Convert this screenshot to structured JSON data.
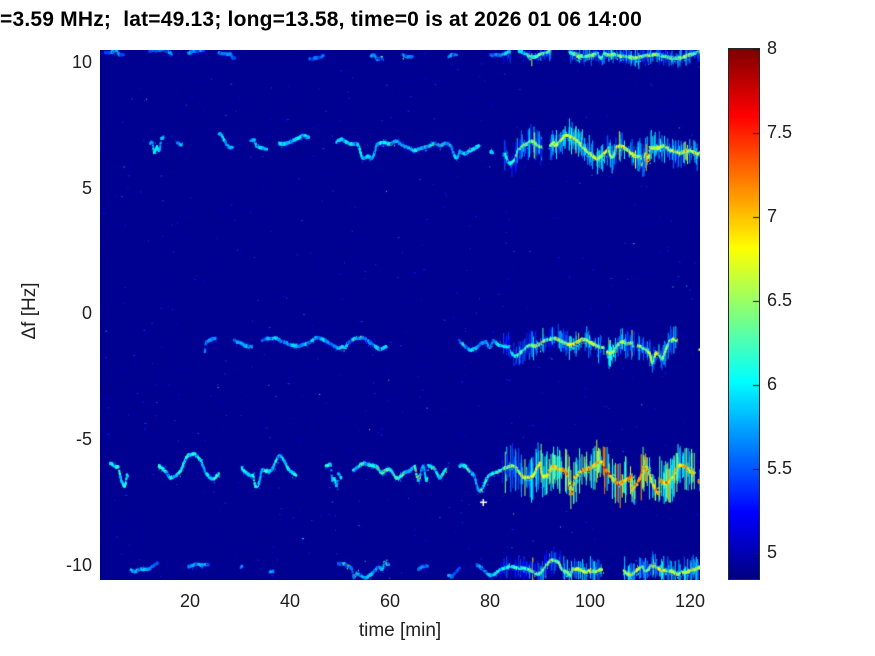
{
  "chart_data": {
    "type": "heatmap",
    "subtype": "doppler-spectrogram",
    "title": "=3.59 MHz;  lat=49.13; long=13.58, time=0 is at 2026 01 06 14:00",
    "xlabel": "time [min]",
    "ylabel": "Δf [Hz]",
    "colormap": "jet",
    "grid": false,
    "xlim": [
      2,
      122
    ],
    "ylim": [
      -10.6,
      10.48
    ],
    "background_value": 4.9,
    "x_ticks": [
      {
        "v": 20,
        "label": "20"
      },
      {
        "v": 40,
        "label": "40"
      },
      {
        "v": 60,
        "label": "60"
      },
      {
        "v": 80,
        "label": "80"
      },
      {
        "v": 100,
        "label": "100"
      },
      {
        "v": 120,
        "label": "120"
      }
    ],
    "y_ticks": [
      {
        "v": 10,
        "label": "10"
      },
      {
        "v": 5,
        "label": "5"
      },
      {
        "v": 0,
        "label": "0"
      },
      {
        "v": -5,
        "label": "-5"
      },
      {
        "v": -10,
        "label": "-10"
      }
    ],
    "colorbar": {
      "vmin": 4.845,
      "vmax": 8,
      "ticks": [
        {
          "v": 8,
          "label": "8"
        },
        {
          "v": 7.5,
          "label": "7.5"
        },
        {
          "v": 7,
          "label": "7"
        },
        {
          "v": 6.5,
          "label": "6.5"
        },
        {
          "v": 6,
          "label": "6"
        },
        {
          "v": 5.5,
          "label": "5.5"
        },
        {
          "v": 5,
          "label": "5"
        }
      ]
    },
    "traces": [
      {
        "name": "trace-upper-edge-plus10.4Hz",
        "df": 10.38,
        "drift": -0.001,
        "amp": 0.13,
        "start": 3,
        "base": 5.6,
        "late": 6.35,
        "bump": 0.25,
        "spread": 0.3,
        "gate": 1.05,
        "spike": 0.02,
        "seed": 11
      },
      {
        "name": "trace-plus6.6Hz",
        "df": 6.85,
        "drift": -0.0035,
        "amp": 0.28,
        "start": 12,
        "base": 5.85,
        "late": 6.6,
        "bump": 0.55,
        "spread": 0.55,
        "gate": 1.0,
        "spike": 0.03,
        "seed": 22
      },
      {
        "name": "trace-minus1.2Hz",
        "df": -1.1,
        "drift": -0.0025,
        "amp": 0.25,
        "start": 13,
        "base": 5.75,
        "late": 6.5,
        "bump": 0.45,
        "spread": 0.5,
        "gate": 1.0,
        "spike": 0.03,
        "seed": 33
      },
      {
        "name": "trace-minus6.2Hz",
        "df": -6.05,
        "drift": -0.003,
        "amp": 0.42,
        "start": 4,
        "base": 6.0,
        "late": 7.05,
        "bump": 0.5,
        "spread": 0.85,
        "gate": 0.78,
        "spike": 0.07,
        "seed": 44
      },
      {
        "name": "trace-minus10.1Hz",
        "df": -10.12,
        "drift": -0.001,
        "amp": 0.2,
        "start": 8,
        "base": 5.7,
        "late": 6.55,
        "bump": 0.3,
        "spread": 0.45,
        "gate": 1.05,
        "spike": 0.03,
        "seed": 55
      }
    ],
    "features": {
      "activity_increase_from_min": 80,
      "bump_event_min": 93,
      "white_flare": {
        "t": 78.6,
        "df": -7.5
      }
    }
  }
}
